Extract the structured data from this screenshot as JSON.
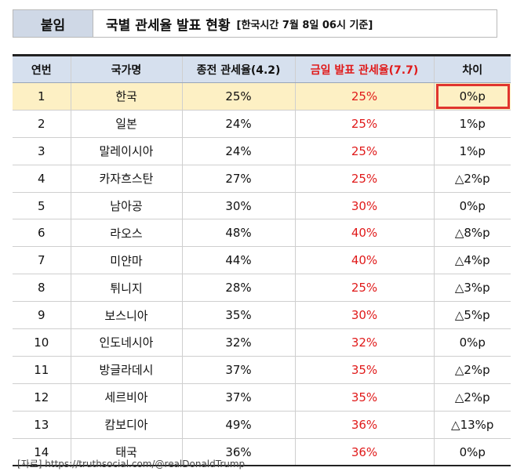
{
  "header": {
    "tag": "붙임",
    "title": "국별 관세율 발표 현황",
    "subtitle": "[한국시간 7월 8일 06시 기준]"
  },
  "table": {
    "columns": [
      "연번",
      "국가명",
      "종전 관세율(4.2)",
      "금일 발표 관세율(7.7)",
      "차이"
    ],
    "rows": [
      {
        "no": "1",
        "country": "한국",
        "previous": "25%",
        "announced": "25%",
        "diff": "0%p"
      },
      {
        "no": "2",
        "country": "일본",
        "previous": "24%",
        "announced": "25%",
        "diff": "1%p"
      },
      {
        "no": "3",
        "country": "말레이시아",
        "previous": "24%",
        "announced": "25%",
        "diff": "1%p"
      },
      {
        "no": "4",
        "country": "카자흐스탄",
        "previous": "27%",
        "announced": "25%",
        "diff": "△2%p"
      },
      {
        "no": "5",
        "country": "남아공",
        "previous": "30%",
        "announced": "30%",
        "diff": "0%p"
      },
      {
        "no": "6",
        "country": "라오스",
        "previous": "48%",
        "announced": "40%",
        "diff": "△8%p"
      },
      {
        "no": "7",
        "country": "미얀마",
        "previous": "44%",
        "announced": "40%",
        "diff": "△4%p"
      },
      {
        "no": "8",
        "country": "튀니지",
        "previous": "28%",
        "announced": "25%",
        "diff": "△3%p"
      },
      {
        "no": "9",
        "country": "보스니아",
        "previous": "35%",
        "announced": "30%",
        "diff": "△5%p"
      },
      {
        "no": "10",
        "country": "인도네시아",
        "previous": "32%",
        "announced": "32%",
        "diff": "0%p"
      },
      {
        "no": "11",
        "country": "방글라데시",
        "previous": "37%",
        "announced": "35%",
        "diff": "△2%p"
      },
      {
        "no": "12",
        "country": "세르비아",
        "previous": "37%",
        "announced": "35%",
        "diff": "△2%p"
      },
      {
        "no": "13",
        "country": "캄보디아",
        "previous": "49%",
        "announced": "36%",
        "diff": "△13%p"
      },
      {
        "no": "14",
        "country": "태국",
        "previous": "36%",
        "announced": "36%",
        "diff": "0%p"
      }
    ]
  },
  "source": "[자료] https://truthsocial.com/@realDonaldTrump",
  "colors": {
    "header_bg": "#d6e0ee",
    "highlight_row": "#fdf0c4",
    "announced_text": "#e01a1a",
    "highlight_box": "#e0352e"
  }
}
